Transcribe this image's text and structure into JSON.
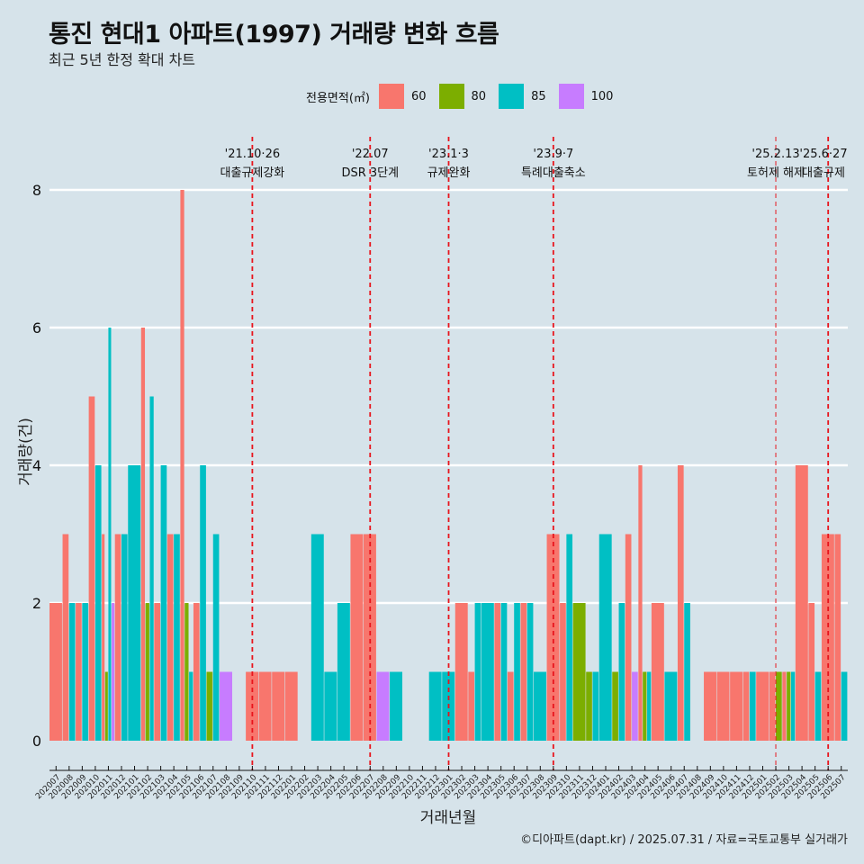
{
  "header": {
    "title": "통진 현대1 아파트(1997) 거래량 변화 흐름",
    "subtitle": "최근 5년 한정 확대 차트"
  },
  "legend": {
    "title": "전용면적(㎡)",
    "items": [
      {
        "label": "60",
        "color": "#F8766D"
      },
      {
        "label": "80",
        "color": "#7CAE00"
      },
      {
        "label": "85",
        "color": "#00BFC4"
      },
      {
        "label": "100",
        "color": "#C77CFF"
      }
    ]
  },
  "caption": "©디아파트(dapt.kr) / 2025.07.31 / 자료=국토교통부 실거래가",
  "chart_data": {
    "type": "bar",
    "title": "통진 현대1 아파트(1997) 거래량 변화 흐름",
    "xlabel": "거래년월",
    "ylabel": "거래량(건)",
    "ylim": [
      0,
      9.5
    ],
    "y_ticks": [
      0,
      2,
      4,
      6,
      8
    ],
    "categories": [
      "202007",
      "202008",
      "202009",
      "202010",
      "202011",
      "202012",
      "202101",
      "202102",
      "202103",
      "202104",
      "202105",
      "202106",
      "202107",
      "202108",
      "202109",
      "202110",
      "202111",
      "202112",
      "202201",
      "202202",
      "202203",
      "202204",
      "202205",
      "202206",
      "202207",
      "202208",
      "202209",
      "202210",
      "202211",
      "202212",
      "202301",
      "202302",
      "202303",
      "202304",
      "202305",
      "202306",
      "202307",
      "202308",
      "202309",
      "202310",
      "202311",
      "202312",
      "202401",
      "202402",
      "202403",
      "202404",
      "202405",
      "202406",
      "202407",
      "202408",
      "202409",
      "202410",
      "202411",
      "202412",
      "202501",
      "202502",
      "202503",
      "202504",
      "202505",
      "202506",
      "202507"
    ],
    "series": [
      {
        "name": "60",
        "color": "#F8766D",
        "values": [
          2,
          3,
          2,
          5,
          3,
          3,
          0,
          6,
          2,
          3,
          8,
          2,
          0,
          0,
          0,
          1,
          1,
          1,
          1,
          0,
          0,
          0,
          0,
          3,
          3,
          0,
          0,
          0,
          0,
          0,
          0,
          2,
          1,
          0,
          2,
          1,
          2,
          0,
          3,
          2,
          0,
          0,
          0,
          0,
          3,
          4,
          2,
          0,
          4,
          0,
          1,
          1,
          1,
          1,
          1,
          1,
          1,
          4,
          2,
          3,
          3
        ]
      },
      {
        "name": "80",
        "color": "#7CAE00",
        "values": [
          0,
          0,
          0,
          0,
          1,
          0,
          0,
          2,
          0,
          0,
          2,
          0,
          1,
          0,
          0,
          0,
          0,
          0,
          0,
          0,
          0,
          0,
          0,
          0,
          0,
          0,
          0,
          0,
          0,
          0,
          0,
          0,
          0,
          0,
          0,
          0,
          0,
          0,
          0,
          0,
          2,
          1,
          0,
          1,
          0,
          1,
          0,
          0,
          0,
          0,
          0,
          0,
          0,
          0,
          0,
          1,
          1,
          0,
          0,
          0,
          0
        ]
      },
      {
        "name": "85",
        "color": "#00BFC4",
        "values": [
          0,
          2,
          2,
          4,
          6,
          3,
          4,
          5,
          4,
          3,
          1,
          4,
          3,
          0,
          0,
          0,
          0,
          0,
          0,
          0,
          3,
          1,
          2,
          0,
          0,
          0,
          1,
          0,
          0,
          1,
          1,
          0,
          2,
          2,
          2,
          2,
          2,
          1,
          0,
          3,
          0,
          1,
          3,
          2,
          0,
          1,
          0,
          1,
          2,
          0,
          0,
          0,
          0,
          1,
          0,
          0,
          1,
          0,
          1,
          0,
          1
        ]
      },
      {
        "name": "100",
        "color": "#C77CFF",
        "values": [
          0,
          0,
          0,
          0,
          2,
          0,
          0,
          0,
          0,
          0,
          0,
          0,
          0,
          1,
          0,
          0,
          0,
          0,
          0,
          0,
          0,
          0,
          0,
          0,
          0,
          1,
          0,
          0,
          0,
          0,
          0,
          0,
          0,
          0,
          0,
          0,
          0,
          0,
          0,
          0,
          0,
          0,
          0,
          0,
          1,
          0,
          0,
          0,
          0,
          0,
          0,
          0,
          0,
          0,
          0,
          0,
          0,
          0,
          0,
          0,
          0
        ]
      }
    ],
    "annotations": [
      {
        "month": "202110",
        "date": "'21.10·26",
        "label": "대출규제강화"
      },
      {
        "month": "202207",
        "date": "'22.07",
        "label": "DSR 3단계"
      },
      {
        "month": "202301",
        "date": "'23.1·3",
        "label": "규제완화"
      },
      {
        "month": "202309",
        "date": "'23.9·7",
        "label": "특례대출축소"
      },
      {
        "month": "202502",
        "date": "'25.2.13",
        "label": "토허제 해제"
      },
      {
        "month": "202506",
        "date": "'25.6·27",
        "label": "대출규제"
      }
    ]
  }
}
